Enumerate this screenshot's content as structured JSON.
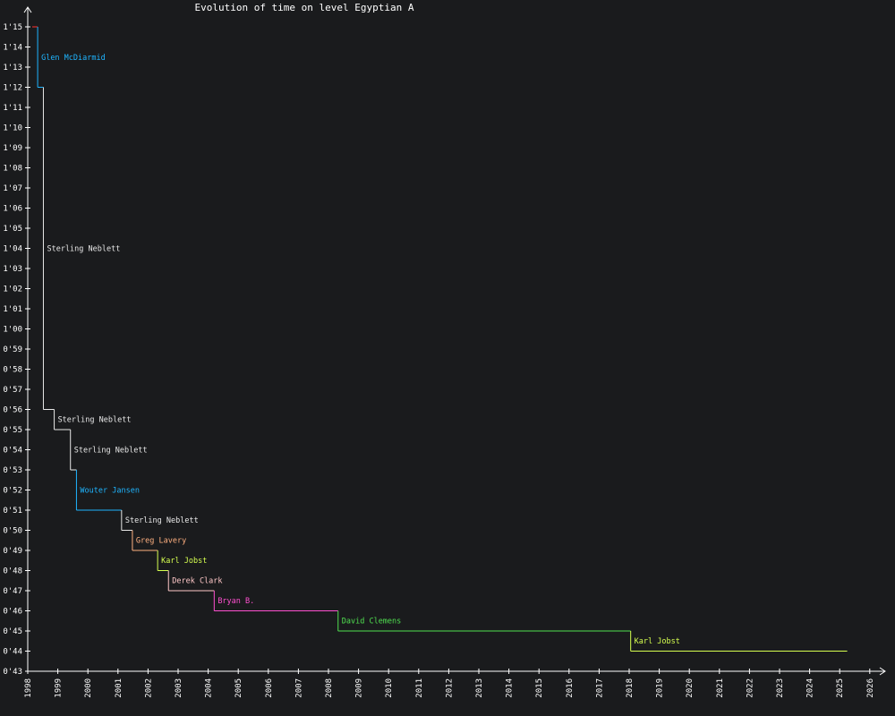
{
  "chart_data": {
    "type": "line",
    "title": "Evolution of time on level Egyptian A",
    "xlabel": "",
    "ylabel": "",
    "xlim": [
      1998.0,
      2026.5
    ],
    "ylim": [
      43,
      75
    ],
    "y_tick_labels": [
      "0'43",
      "0'44",
      "0'45",
      "0'46",
      "0'47",
      "0'48",
      "0'49",
      "0'50",
      "0'51",
      "0'52",
      "0'53",
      "0'54",
      "0'55",
      "0'56",
      "0'57",
      "0'58",
      "0'59",
      "1'00",
      "1'01",
      "1'02",
      "1'03",
      "1'04",
      "1'05",
      "1'06",
      "1'07",
      "1'08",
      "1'09",
      "1'10",
      "1'11",
      "1'12",
      "1'13",
      "1'14",
      "1'15"
    ],
    "x_tick_labels": [
      "1998",
      "1999",
      "2000",
      "2001",
      "2002",
      "2003",
      "2004",
      "2005",
      "2006",
      "2007",
      "2008",
      "2009",
      "2010",
      "2011",
      "2012",
      "2013",
      "2014",
      "2015",
      "2016",
      "2017",
      "2018",
      "2019",
      "2020",
      "2021",
      "2022",
      "2023",
      "2024",
      "2025",
      "2026"
    ],
    "grid": false,
    "legend": "none",
    "steps": [
      {
        "player": "",
        "x_start": 1998.15,
        "x_end": 1998.33,
        "time": 75,
        "color": "#ff3030"
      },
      {
        "player": "Glen McDiarmid",
        "x_start": 1998.33,
        "x_end": 1998.52,
        "time": 72,
        "color": "#1fb5ff"
      },
      {
        "player": "Sterling Neblett",
        "x_start": 1998.52,
        "x_end": 1998.88,
        "time": 56,
        "color": "#e8e8e8"
      },
      {
        "player": "Sterling Neblett",
        "x_start": 1998.88,
        "x_end": 1999.42,
        "time": 55,
        "color": "#e8e8e8"
      },
      {
        "player": "Sterling Neblett",
        "x_start": 1999.42,
        "x_end": 1999.62,
        "time": 53,
        "color": "#e8e8e8"
      },
      {
        "player": "Wouter Jansen",
        "x_start": 1999.62,
        "x_end": 2001.12,
        "time": 51,
        "color": "#1fb5ff"
      },
      {
        "player": "Sterling Neblett",
        "x_start": 2001.12,
        "x_end": 2001.48,
        "time": 50,
        "color": "#e8e8e8"
      },
      {
        "player": "Greg Lavery",
        "x_start": 2001.48,
        "x_end": 2002.32,
        "time": 49,
        "color": "#ffb080"
      },
      {
        "player": "Karl Jobst",
        "x_start": 2002.32,
        "x_end": 2002.68,
        "time": 48,
        "color": "#d6ff50"
      },
      {
        "player": "Derek Clark",
        "x_start": 2002.68,
        "x_end": 2004.2,
        "time": 47,
        "color": "#ffc8c8"
      },
      {
        "player": "Bryan B.",
        "x_start": 2004.2,
        "x_end": 2008.32,
        "time": 46,
        "color": "#ff50d0"
      },
      {
        "player": "David Clemens",
        "x_start": 2008.32,
        "x_end": 2018.05,
        "time": 45,
        "color": "#50e050"
      },
      {
        "player": "Karl Jobst",
        "x_start": 2018.05,
        "x_end": 2025.25,
        "time": 44,
        "color": "#d6ff50"
      }
    ]
  }
}
